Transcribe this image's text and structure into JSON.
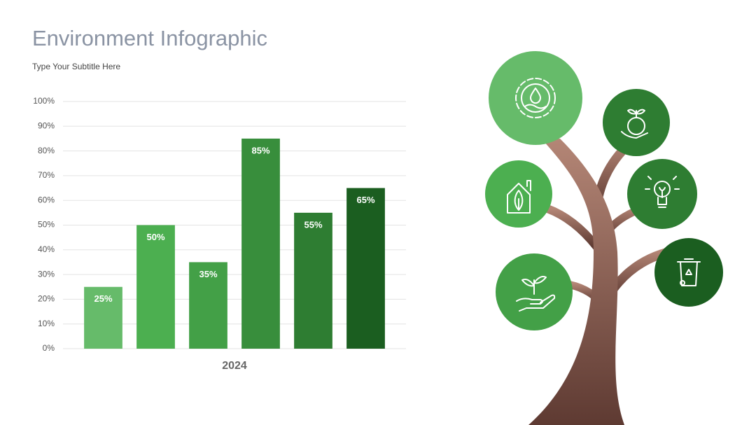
{
  "chart_data": {
    "type": "bar",
    "title": "Environment Infographic",
    "subtitle": "Type Your Subtitle Here",
    "categories": [
      "2024"
    ],
    "series": [
      {
        "color": "#66bb6a",
        "values": [
          25
        ],
        "value_labels": [
          "25%"
        ]
      },
      {
        "color": "#4caf50",
        "values": [
          50
        ],
        "value_labels": [
          "50%"
        ]
      },
      {
        "color": "#43a047",
        "values": [
          35
        ],
        "value_labels": [
          "35%"
        ]
      },
      {
        "color": "#388e3c",
        "values": [
          85
        ],
        "value_labels": [
          "85%"
        ]
      },
      {
        "color": "#2e7d32",
        "values": [
          55
        ],
        "value_labels": [
          "55%"
        ]
      },
      {
        "color": "#1b5e20",
        "values": [
          65
        ],
        "value_labels": [
          "65%"
        ]
      }
    ],
    "ylim": [
      0,
      100
    ],
    "yticks": [
      {
        "value": 0,
        "label": "0%"
      },
      {
        "value": 10,
        "label": "10%"
      },
      {
        "value": 20,
        "label": "20%"
      },
      {
        "value": 30,
        "label": "30%"
      },
      {
        "value": 40,
        "label": "40%"
      },
      {
        "value": 50,
        "label": "50%"
      },
      {
        "value": 60,
        "label": "60%"
      },
      {
        "value": 70,
        "label": "70%"
      },
      {
        "value": 80,
        "label": "80%"
      },
      {
        "value": 90,
        "label": "90%"
      },
      {
        "value": 100,
        "label": "100%"
      }
    ],
    "grid": true
  }
}
